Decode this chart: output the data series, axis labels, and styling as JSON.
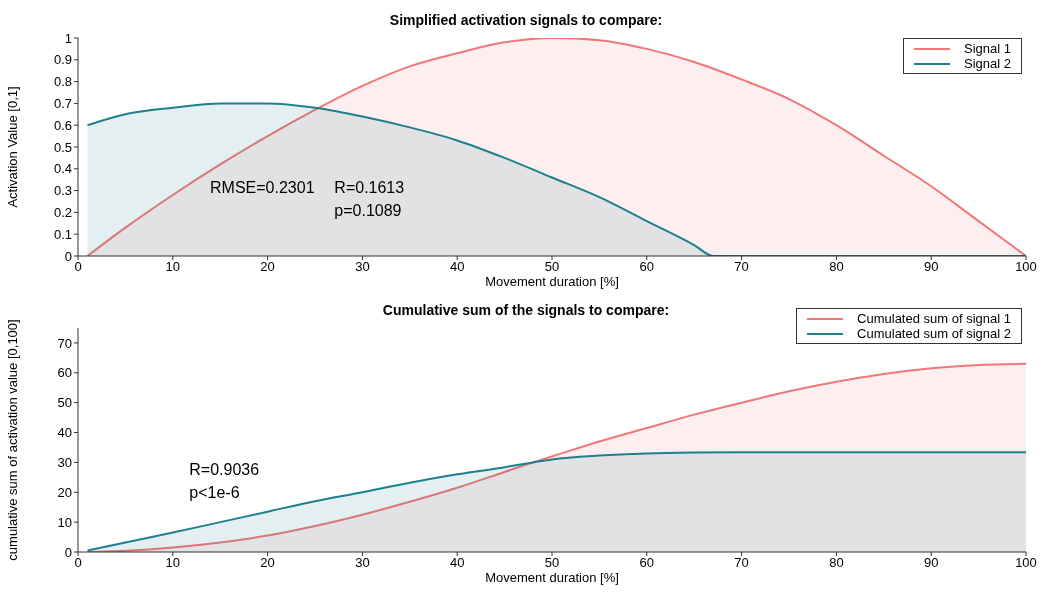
{
  "chart_data": [
    {
      "type": "area",
      "title": "Simplified activation signals to compare:",
      "xlabel": "Movement duration [%]",
      "ylabel": "Activation Value [0,1]",
      "series": [
        {
          "name": "Signal 1",
          "color": "#f07878",
          "x": [
            1,
            5,
            10,
            15,
            20,
            25,
            30,
            35,
            40,
            45,
            50,
            55,
            60,
            65,
            70,
            75,
            80,
            85,
            90,
            95,
            100
          ],
          "values": [
            0,
            0.13,
            0.28,
            0.42,
            0.55,
            0.67,
            0.78,
            0.87,
            0.93,
            0.98,
            1.0,
            0.99,
            0.95,
            0.89,
            0.81,
            0.72,
            0.6,
            0.46,
            0.32,
            0.16,
            0
          ]
        },
        {
          "name": "Signal 2",
          "color": "#1f7f8c",
          "x": [
            1,
            5,
            10,
            15,
            20,
            25,
            30,
            35,
            40,
            45,
            50,
            55,
            60,
            65,
            67,
            70,
            80,
            90,
            100
          ],
          "values": [
            0.6,
            0.65,
            0.68,
            0.7,
            0.7,
            0.68,
            0.64,
            0.59,
            0.53,
            0.45,
            0.36,
            0.27,
            0.16,
            0.05,
            0,
            0,
            0,
            0,
            0
          ]
        }
      ],
      "xlim": [
        0,
        100
      ],
      "xticks": [
        0,
        10,
        20,
        30,
        40,
        50,
        60,
        70,
        80,
        90,
        100
      ],
      "ylim": [
        0,
        1
      ],
      "yticks": [
        0,
        0.1,
        0.2,
        0.3,
        0.4,
        0.5,
        0.6,
        0.7,
        0.8,
        0.9,
        1
      ],
      "annotations": [
        "RMSE=0.2301",
        "R=0.1613",
        "p=0.1089"
      ],
      "legend": "top right",
      "grid": false,
      "marker": "none",
      "line_style": "solid"
    },
    {
      "type": "area",
      "title": "Cumulative sum of the signals to compare:",
      "xlabel": "Movement duration [%]",
      "ylabel": "cumulative sum of activation value [0,100]",
      "series": [
        {
          "name": "Cumulated sum of signal 1",
          "color": "#f07878",
          "x": [
            1,
            5,
            10,
            15,
            20,
            25,
            30,
            35,
            40,
            45,
            48,
            50,
            55,
            60,
            65,
            70,
            75,
            80,
            85,
            90,
            95,
            100
          ],
          "values": [
            0,
            0.4,
            1.5,
            3.2,
            5.5,
            8.7,
            12.5,
            16.8,
            21.5,
            26.8,
            30,
            32,
            37,
            41.5,
            46,
            50,
            53.8,
            57,
            59.6,
            61.5,
            62.6,
            63
          ]
        },
        {
          "name": "Cumulated sum of signal 2",
          "color": "#1f7f8c",
          "x": [
            1,
            5,
            10,
            15,
            20,
            25,
            30,
            35,
            40,
            45,
            48,
            50,
            55,
            60,
            65,
            70,
            80,
            90,
            100
          ],
          "values": [
            0.5,
            3.2,
            6.5,
            10,
            13.5,
            17,
            20,
            23.2,
            26,
            28.4,
            30,
            31,
            32.3,
            33,
            33.3,
            33.4,
            33.4,
            33.4,
            33.4
          ]
        }
      ],
      "xlim": [
        0,
        100
      ],
      "xticks": [
        0,
        10,
        20,
        30,
        40,
        50,
        60,
        70,
        80,
        90,
        100
      ],
      "ylim": [
        0,
        75
      ],
      "yticks": [
        0,
        10,
        20,
        30,
        40,
        50,
        60,
        70
      ],
      "annotations": [
        "R=0.9036",
        "p<1e-6"
      ],
      "legend": "top right",
      "grid": false,
      "marker": "none",
      "line_style": "solid"
    }
  ]
}
